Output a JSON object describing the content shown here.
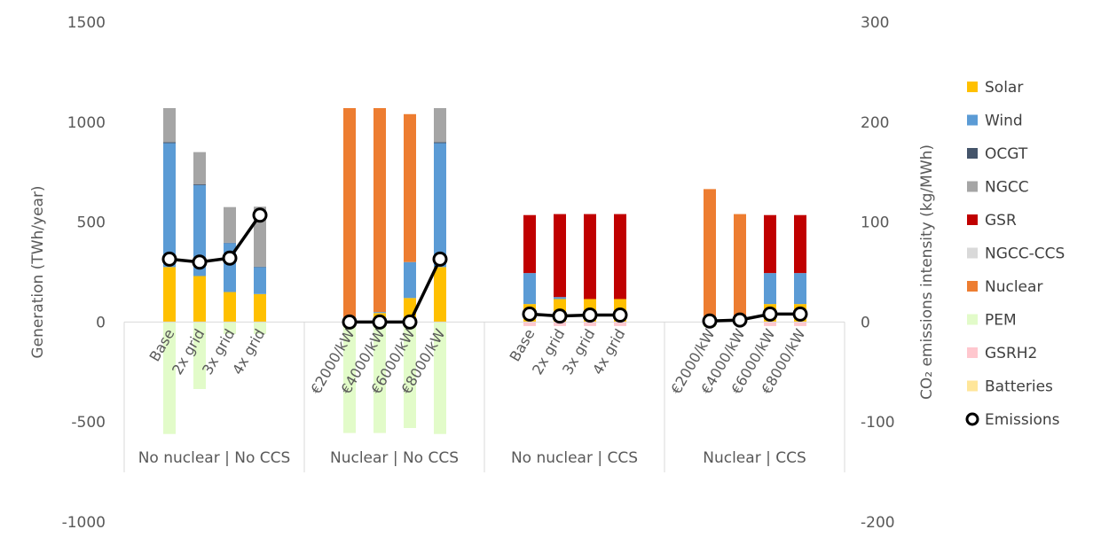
{
  "chart_data": {
    "type": "bar",
    "stacked": true,
    "title": "",
    "ylabel": "Generation (TWh/year)",
    "ylabel_right": "CO₂ emissions intensity (kg/MWh)",
    "ylim": [
      -1000,
      1500
    ],
    "ylim_right": [
      -200,
      300
    ],
    "yticks": [
      -1000,
      -500,
      0,
      500,
      1000,
      1500
    ],
    "yticks_right": [
      -200,
      -100,
      0,
      100,
      200,
      300
    ],
    "grid": false,
    "legend_position": "right",
    "groups": [
      {
        "label": "No nuclear | No CCS",
        "categories": [
          "Base",
          "2x grid",
          "3x grid",
          "4x grid"
        ]
      },
      {
        "label": "Nuclear | No CCS",
        "categories": [
          "€2000/kW",
          "€4000/kW",
          "€6000/kW",
          "€8000/kW"
        ]
      },
      {
        "label": "No nuclear | CCS",
        "categories": [
          "Base",
          "2x grid",
          "3x grid",
          "4x grid"
        ]
      },
      {
        "label": "Nuclear | CCS",
        "categories": [
          "€2000/kW",
          "€4000/kW",
          "€6000/kW",
          "€8000/kW"
        ]
      }
    ],
    "series": [
      {
        "name": "Solar",
        "color": "#FFC000",
        "values": [
          275,
          230,
          150,
          140,
          0,
          45,
          120,
          275,
          90,
          115,
          115,
          115,
          0,
          15,
          90,
          90
        ]
      },
      {
        "name": "Wind",
        "color": "#5B9BD5",
        "values": [
          620,
          455,
          245,
          135,
          0,
          5,
          180,
          620,
          155,
          10,
          0,
          0,
          0,
          0,
          155,
          155
        ]
      },
      {
        "name": "OCGT",
        "color": "#44546A",
        "values": [
          5,
          5,
          2,
          2,
          0,
          0,
          0,
          5,
          0,
          0,
          0,
          0,
          0,
          0,
          0,
          0
        ]
      },
      {
        "name": "NGCC",
        "color": "#A5A5A5",
        "values": [
          170,
          160,
          178,
          300,
          0,
          0,
          0,
          170,
          0,
          0,
          0,
          0,
          0,
          0,
          0,
          0
        ]
      },
      {
        "name": "GSR",
        "color": "#C00000",
        "values": [
          0,
          0,
          0,
          0,
          0,
          0,
          0,
          0,
          290,
          415,
          425,
          425,
          0,
          20,
          290,
          290
        ]
      },
      {
        "name": "NGCC-CCS",
        "color": "#D9D9D9",
        "values": [
          0,
          0,
          0,
          0,
          0,
          0,
          0,
          0,
          0,
          0,
          0,
          0,
          0,
          0,
          0,
          0
        ]
      },
      {
        "name": "Nuclear",
        "color": "#ED7D31",
        "values": [
          0,
          0,
          0,
          0,
          1070,
          1020,
          740,
          0,
          0,
          0,
          0,
          0,
          665,
          505,
          0,
          0
        ]
      },
      {
        "name": "PEM",
        "color": "#E2FBC9",
        "values": [
          -560,
          -335,
          -60,
          -60,
          -555,
          -555,
          -530,
          -560,
          0,
          0,
          0,
          0,
          -25,
          0,
          0,
          0
        ]
      },
      {
        "name": "GSRH2",
        "color": "#FFC7CE",
        "values": [
          0,
          0,
          0,
          0,
          0,
          0,
          0,
          0,
          -20,
          -20,
          -20,
          -20,
          0,
          -10,
          -20,
          -20
        ]
      },
      {
        "name": "Batteries",
        "color": "#FFE699",
        "values": [
          0,
          0,
          0,
          0,
          0,
          0,
          0,
          0,
          0,
          0,
          0,
          0,
          0,
          0,
          0,
          0
        ]
      }
    ],
    "emissions": {
      "name": "Emissions",
      "axis": "right",
      "values": [
        63,
        60,
        64,
        107,
        0,
        0,
        0,
        63,
        8,
        6,
        7,
        7,
        1,
        2,
        8,
        8
      ]
    }
  }
}
